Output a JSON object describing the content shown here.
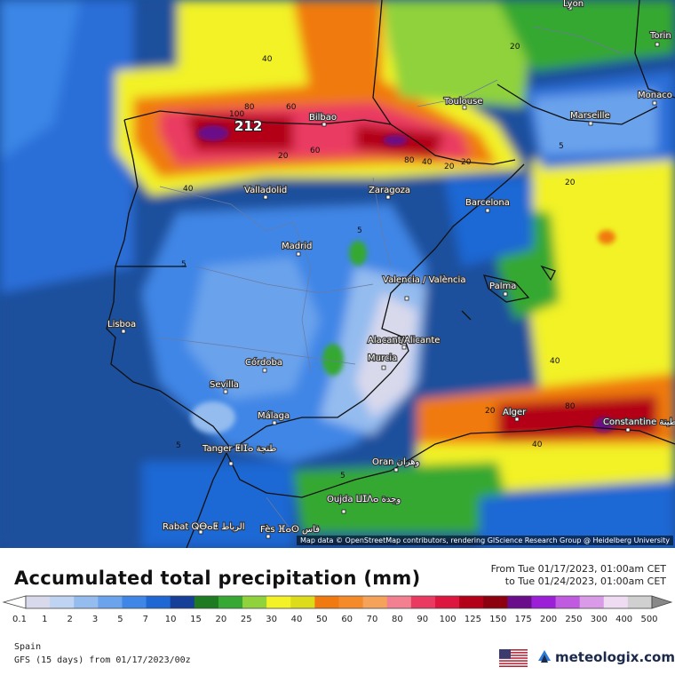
{
  "title": "Accumulated total precipitation (mm)",
  "period": {
    "from": "From Tue 01/17/2023, 01:00am CET",
    "to": "to Tue 01/24/2023, 01:00am CET"
  },
  "region": "Spain",
  "model": "GFS (15 days) from  01/17/2023/00z",
  "brand": "meteologix.com",
  "attribution": "Map data © OpenStreetMap contributors, rendering GIScience Research Group @ Heidelberg University",
  "peak_value": "212",
  "cities": [
    {
      "name": "Lyon"
    },
    {
      "name": "Torin"
    },
    {
      "name": "Monaco"
    },
    {
      "name": "Marseille"
    },
    {
      "name": "Toulouse"
    },
    {
      "name": "Bilbao"
    },
    {
      "name": "Valladolid"
    },
    {
      "name": "Zaragoza"
    },
    {
      "name": "Barcelona"
    },
    {
      "name": "Madrid"
    },
    {
      "name": "Valencia / València"
    },
    {
      "name": "Palma"
    },
    {
      "name": "Lisboa"
    },
    {
      "name": "Alacant/Alicante"
    },
    {
      "name": "Murcia"
    },
    {
      "name": "Córdoba"
    },
    {
      "name": "Sevilla"
    },
    {
      "name": "Málaga"
    },
    {
      "name": "Tanger ⵟⵏⵊⴰ طنجة"
    },
    {
      "name": "Oran وهران"
    },
    {
      "name": "Alger"
    },
    {
      "name": "Constantine قسنطينة"
    },
    {
      "name": "Oujda ⵡⵊⴷⴰ وجدة"
    },
    {
      "name": "Rabat ⵕⴱⴰⵟ الرباط"
    },
    {
      "name": "Fès ⴼⴰⵙ فاس"
    }
  ],
  "contour_labels": [
    "40",
    "80",
    "80",
    "60",
    "60",
    "100",
    "40",
    "20",
    "20",
    "5",
    "5",
    "5",
    "5",
    "20",
    "40",
    "40",
    "20",
    "20",
    "80",
    "40",
    "5",
    "20"
  ],
  "legend": {
    "ticks": [
      "0.1",
      "1",
      "2",
      "3",
      "5",
      "7",
      "10",
      "15",
      "20",
      "25",
      "30",
      "40",
      "50",
      "60",
      "70",
      "80",
      "90",
      "100",
      "125",
      "150",
      "175",
      "200",
      "250",
      "300",
      "400",
      "500"
    ],
    "colors": [
      "#d9d9ec",
      "#bfd3f2",
      "#94bcef",
      "#6ba3ec",
      "#3f86e6",
      "#1f68d4",
      "#153f99",
      "#1e7b22",
      "#36a833",
      "#8fd23b",
      "#f2f226",
      "#dcdc1a",
      "#f07a10",
      "#f48a2a",
      "#f5a25a",
      "#f38090",
      "#ea3a62",
      "#dd1640",
      "#b30018",
      "#8c0010",
      "#6a0d8a",
      "#9b1fd6",
      "#c05ae0",
      "#d99ae8",
      "#efdcf2",
      "#d0d0d0"
    ]
  }
}
